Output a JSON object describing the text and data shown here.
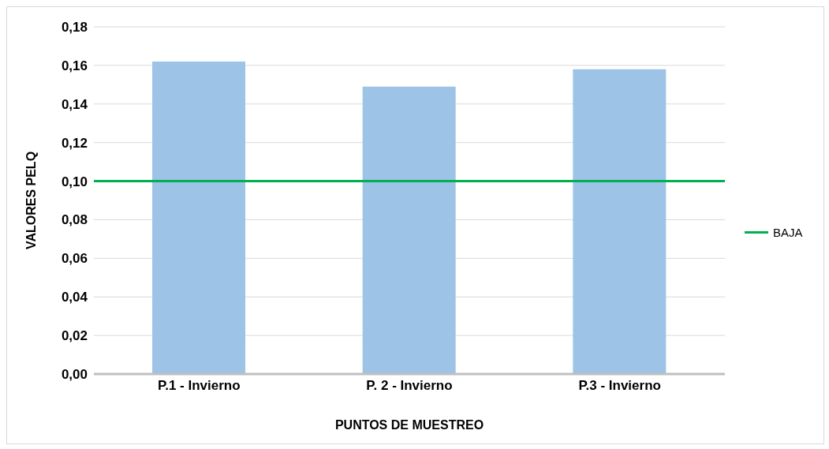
{
  "chart_data": {
    "type": "bar",
    "xlabel": "PUNTOS DE MUESTREO",
    "ylabel": "VALORES PELQ",
    "categories": [
      "P.1 - Invierno",
      "P. 2 - Invierno",
      "P.3 - Invierno"
    ],
    "values": [
      0.162,
      0.149,
      0.158
    ],
    "color": "#9dc3e6",
    "ylim": [
      0,
      0.18
    ],
    "yticks": [
      {
        "value": 0,
        "label": "0,00"
      },
      {
        "value": 0.02,
        "label": "0,02"
      },
      {
        "value": 0.04,
        "label": "0,04"
      },
      {
        "value": 0.06,
        "label": "0,06"
      },
      {
        "value": 0.08,
        "label": "0,08"
      },
      {
        "value": 0.1,
        "label": "0,10"
      },
      {
        "value": 0.12,
        "label": "0,12"
      },
      {
        "value": 0.14,
        "label": "0,14"
      },
      {
        "value": 0.16,
        "label": "0,16"
      },
      {
        "value": 0.18,
        "label": "0,18"
      }
    ],
    "ref_lines": [
      {
        "axis": "y",
        "value": 0.1,
        "label": "BAJA",
        "color": "#00b050"
      }
    ],
    "grid": "y",
    "legend": "right"
  }
}
